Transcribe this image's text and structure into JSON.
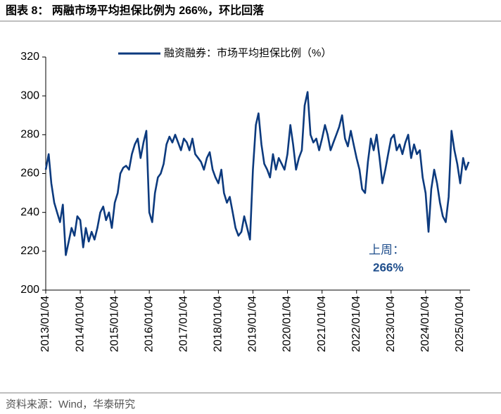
{
  "chart_data": {
    "type": "line",
    "title": "图表 8：  两融市场平均担保比例为 266%，环比回落",
    "source": "资料来源：Wind，华泰研究",
    "annotation": "上周：",
    "annotation_value": "266%",
    "x": [
      "2013/01/04",
      "2013/02/04",
      "2013/03/04",
      "2013/04/04",
      "2013/05/04",
      "2013/06/04",
      "2013/07/04",
      "2013/08/04",
      "2013/09/04",
      "2013/10/04",
      "2013/11/04",
      "2013/12/04",
      "2014/01/04",
      "2014/02/04",
      "2014/03/04",
      "2014/04/04",
      "2014/05/04",
      "2014/06/04",
      "2014/07/04",
      "2014/08/04",
      "2014/09/04",
      "2014/10/04",
      "2014/11/04",
      "2014/12/04",
      "2015/01/04",
      "2015/02/04",
      "2015/03/04",
      "2015/04/04",
      "2015/05/04",
      "2015/06/04",
      "2015/07/04",
      "2015/08/04",
      "2015/09/04",
      "2015/10/04",
      "2015/11/04",
      "2015/12/04",
      "2016/01/04",
      "2016/02/04",
      "2016/03/04",
      "2016/04/04",
      "2016/05/04",
      "2016/06/04",
      "2016/07/04",
      "2016/08/04",
      "2016/09/04",
      "2016/10/04",
      "2016/11/04",
      "2016/12/04",
      "2017/01/04",
      "2017/02/04",
      "2017/03/04",
      "2017/04/04",
      "2017/05/04",
      "2017/06/04",
      "2017/07/04",
      "2017/08/04",
      "2017/09/04",
      "2017/10/04",
      "2017/11/04",
      "2017/12/04",
      "2018/01/04",
      "2018/02/04",
      "2018/03/04",
      "2018/04/04",
      "2018/05/04",
      "2018/06/04",
      "2018/07/04",
      "2018/08/04",
      "2018/09/04",
      "2018/10/04",
      "2018/11/04",
      "2018/12/04",
      "2019/01/04",
      "2019/02/04",
      "2019/03/04",
      "2019/04/04",
      "2019/05/04",
      "2019/06/04",
      "2019/07/04",
      "2019/08/04",
      "2019/09/04",
      "2019/10/04",
      "2019/11/04",
      "2019/12/04",
      "2020/01/04",
      "2020/02/04",
      "2020/03/04",
      "2020/04/04",
      "2020/05/04",
      "2020/06/04",
      "2020/07/04",
      "2020/08/04",
      "2020/09/04",
      "2020/10/04",
      "2020/11/04",
      "2020/12/04",
      "2021/01/04",
      "2021/02/04",
      "2021/03/04",
      "2021/04/04",
      "2021/05/04",
      "2021/06/04",
      "2021/07/04",
      "2021/08/04",
      "2021/09/04",
      "2021/10/04",
      "2021/11/04",
      "2021/12/04",
      "2022/01/04",
      "2022/02/04",
      "2022/03/04",
      "2022/04/04",
      "2022/05/04",
      "2022/06/04",
      "2022/07/04",
      "2022/08/04",
      "2022/09/04",
      "2022/10/04",
      "2022/11/04",
      "2022/12/04",
      "2023/01/04",
      "2023/02/04",
      "2023/03/04",
      "2023/04/04",
      "2023/05/04",
      "2023/06/04",
      "2023/07/04",
      "2023/08/04",
      "2023/09/04",
      "2023/10/04",
      "2023/11/04",
      "2023/12/04",
      "2024/01/04",
      "2024/02/04",
      "2024/03/04",
      "2024/04/04",
      "2024/05/04",
      "2024/06/04",
      "2024/07/04",
      "2024/08/04",
      "2024/09/04",
      "2024/10/04",
      "2024/11/04",
      "2024/12/04",
      "2025/01/04",
      "2025/02/04",
      "2025/03/04",
      "2025/04/04"
    ],
    "series": [
      {
        "name": "融资融券：市场平均担保比例（%）",
        "color": "#0c3a7e",
        "values": [
          262,
          270,
          255,
          245,
          240,
          235,
          244,
          218,
          225,
          232,
          228,
          238,
          236,
          222,
          232,
          225,
          230,
          226,
          232,
          240,
          243,
          236,
          240,
          232,
          245,
          250,
          260,
          263,
          264,
          262,
          270,
          275,
          278,
          268,
          276,
          282,
          240,
          235,
          250,
          258,
          260,
          265,
          275,
          279,
          276,
          280,
          276,
          272,
          278,
          276,
          272,
          278,
          270,
          268,
          266,
          262,
          268,
          271,
          262,
          258,
          255,
          262,
          250,
          245,
          248,
          240,
          232,
          228,
          230,
          238,
          232,
          226,
          262,
          285,
          291,
          275,
          265,
          262,
          258,
          270,
          262,
          268,
          265,
          262,
          270,
          285,
          275,
          262,
          268,
          272,
          295,
          302,
          280,
          276,
          278,
          272,
          278,
          285,
          280,
          272,
          276,
          280,
          284,
          290,
          278,
          274,
          282,
          275,
          268,
          262,
          252,
          250,
          266,
          278,
          272,
          280,
          268,
          255,
          262,
          270,
          278,
          280,
          272,
          275,
          270,
          276,
          280,
          268,
          275,
          270,
          272,
          258,
          250,
          230,
          252,
          262,
          255,
          245,
          238,
          235,
          248,
          282,
          272,
          265,
          255,
          268,
          262,
          266
        ]
      }
    ],
    "xlim": [
      "2013/01/04",
      "2025/04/18"
    ],
    "xticks": [
      "2013/01/04",
      "2014/01/04",
      "2015/01/04",
      "2016/01/04",
      "2017/01/04",
      "2018/01/04",
      "2019/01/04",
      "2020/01/04",
      "2021/01/04",
      "2022/01/04",
      "2023/01/04",
      "2024/01/04",
      "2025/01/04"
    ],
    "ylim": [
      200,
      320
    ],
    "yticks": [
      200,
      220,
      240,
      260,
      280,
      300,
      320
    ]
  }
}
